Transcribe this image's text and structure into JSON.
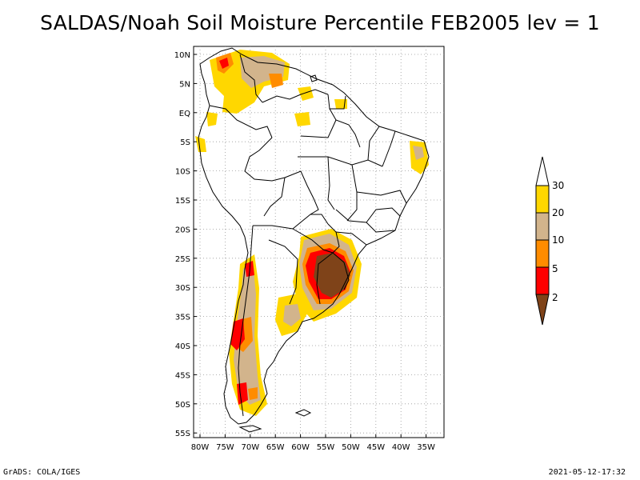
{
  "title": "SALDAS/Noah Soil Moisture Percentile FEB2005 lev = 1",
  "footer": {
    "left": "GrADS: COLA/IGES",
    "right": "2021-05-12-17:32"
  },
  "lat_ticks": [
    "10N",
    "5N",
    "EQ",
    "5S",
    "10S",
    "15S",
    "20S",
    "25S",
    "30S",
    "35S",
    "40S",
    "45S",
    "50S",
    "55S"
  ],
  "lon_ticks": [
    "80W",
    "75W",
    "70W",
    "65W",
    "60W",
    "55W",
    "50W",
    "45W",
    "40W",
    "35W"
  ],
  "colorbar": {
    "labels": [
      "2",
      "5",
      "10",
      "20",
      "30"
    ],
    "colors": {
      "lt2": "#7f4319",
      "2to5": "#ff0000",
      "5to10": "#ff8c00",
      "10to20": "#d2b48c",
      "20to30": "#ffd700",
      "gt30": "#ffffff"
    }
  },
  "map": {
    "extent": {
      "lon": [
        -81,
        -33
      ],
      "lat": [
        -56,
        12
      ]
    },
    "grid_lines": "dotted",
    "palette": {
      "brown": "#7f4319",
      "red": "#ff0000",
      "orange": "#ff8c00",
      "tan": "#d2b48c",
      "yellow": "#ffd700"
    }
  }
}
